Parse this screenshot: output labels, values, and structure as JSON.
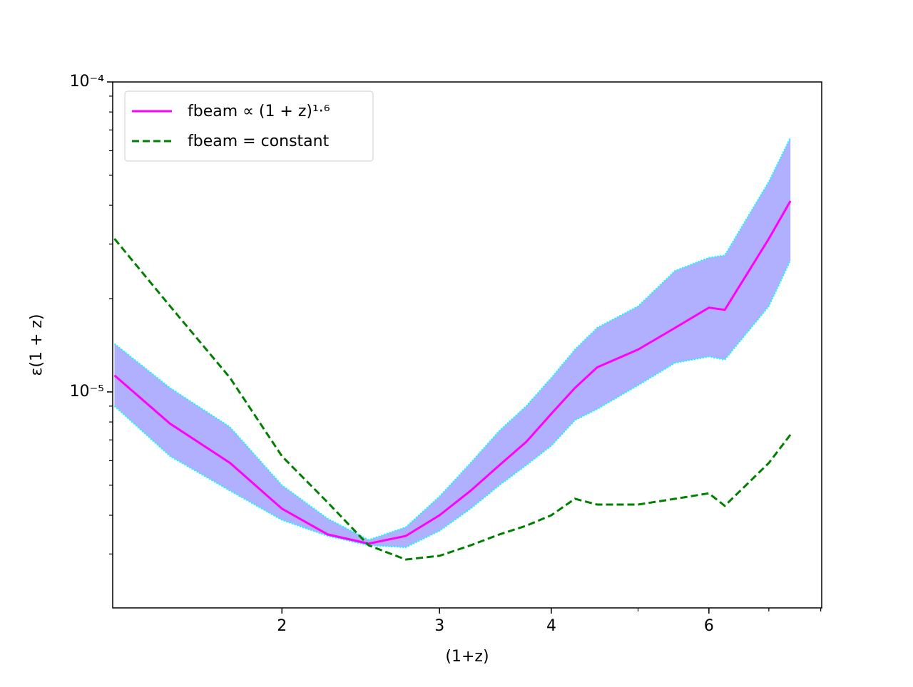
{
  "chart_data": {
    "type": "line",
    "xlabel": "(1+z)",
    "ylabel": "ε(1 + z)",
    "x": [
      1.3,
      1.5,
      1.75,
      2.0,
      2.25,
      2.5,
      2.75,
      3.0,
      3.25,
      3.5,
      3.75,
      4.0,
      4.25,
      4.5,
      5.0,
      5.5,
      6.0,
      6.25,
      7.0,
      7.4
    ],
    "series": [
      {
        "name": "fbeam ∝ (1 + z)¹·⁶",
        "color": "#ff00ff",
        "dash": false,
        "values": [
          1.13e-05,
          7.9e-06,
          5.9e-06,
          4.2e-06,
          3.47e-06,
          3.24e-06,
          3.43e-06,
          4e-06,
          4.8e-06,
          5.8e-06,
          6.9e-06,
          8.5e-06,
          1.03e-05,
          1.2e-05,
          1.37e-05,
          1.61e-05,
          1.87e-05,
          1.84e-05,
          3.12e-05,
          4.13e-05
        ]
      },
      {
        "name": "fbeam = constant",
        "color": "#007f00",
        "dash": true,
        "values": [
          3.12e-05,
          1.89e-05,
          1.11e-05,
          6.2e-06,
          4.4e-06,
          3.2e-06,
          2.88e-06,
          2.96e-06,
          3.2e-06,
          3.47e-06,
          3.7e-06,
          4e-06,
          4.52e-06,
          4.33e-06,
          4.33e-06,
          4.52e-06,
          4.71e-06,
          4.29e-06,
          5.9e-06,
          7.28e-06
        ]
      }
    ],
    "band": {
      "color": "#b0b0ff",
      "edge_color": "#00ffff",
      "upper": [
        1.43e-05,
        1.03e-05,
        7.7e-06,
        5e-06,
        3.9e-06,
        3.33e-06,
        3.66e-06,
        4.6e-06,
        5.9e-06,
        7.5e-06,
        9e-06,
        1.11e-05,
        1.37e-05,
        1.61e-05,
        1.89e-05,
        2.46e-05,
        2.71e-05,
        2.76e-05,
        4.77e-05,
        6.62e-05
      ],
      "lower": [
        9e-06,
        6.2e-06,
        4.8e-06,
        3.86e-06,
        3.43e-06,
        3.2e-06,
        3.15e-06,
        3.56e-06,
        4.2e-06,
        5e-06,
        5.8e-06,
        6.7e-06,
        8.1e-06,
        8.8e-06,
        1.05e-05,
        1.24e-05,
        1.3e-05,
        1.27e-05,
        1.89e-05,
        2.66e-05
      ]
    },
    "xscale": "log",
    "yscale": "log",
    "xlim": [
      1.294,
      8.02
    ],
    "ylim": [
      2.01e-06,
      0.0001
    ],
    "xticks": [
      2,
      3,
      4,
      6
    ],
    "xminorticks": [
      5,
      7,
      8
    ],
    "yticks": [
      {
        "value": 1e-05,
        "label": "10⁻⁵"
      },
      {
        "value": 0.0001,
        "label": "10⁻⁴"
      }
    ],
    "yminorticks": [
      3e-06,
      4e-06,
      5e-06,
      6e-06,
      7e-06,
      8e-06,
      9e-06,
      2e-05,
      3e-05,
      4e-05,
      5e-05,
      6e-05,
      7e-05,
      8e-05,
      9e-05
    ],
    "legend": "upper left",
    "grid": false
  }
}
